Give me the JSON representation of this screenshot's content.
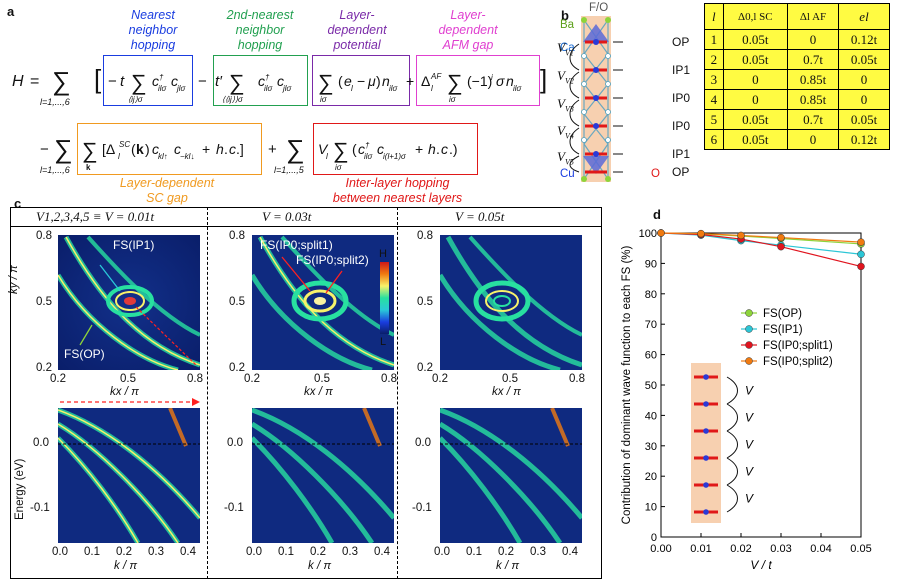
{
  "panel_a": {
    "letter": "a",
    "ann_nn": "Nearest\nneighbor\nhopping",
    "ann_2nn": "2nd-nearest\nneighbor\nhopping",
    "ann_pot": "Layer-\ndependent\npotential",
    "ann_afm": "Layer-\ndependent\nAFM gap",
    "ann_sc": "Layer-dependent\nSC gap",
    "ann_inter": "Inter-layer hopping\nbetween nearest layers",
    "colors": {
      "nn": "#1a3de0",
      "nnn": "#22a050",
      "pot": "#7a2aa8",
      "afm": "#e040d0",
      "sc": "#f09a20",
      "inter": "#e01818"
    }
  },
  "panel_b": {
    "letter": "b",
    "label_fo": "F/O",
    "label_ba": "Ba",
    "label_ca": "Ca",
    "label_cu": "Cu",
    "label_o": "O",
    "v_labels": [
      "V1",
      "V2",
      "V3",
      "V4",
      "V5"
    ],
    "layer_labels": [
      "OP",
      "IP1",
      "IP0",
      "IP0",
      "IP1",
      "OP"
    ],
    "table_headers": [
      "l",
      "Δ0,l SC",
      "Δl AF",
      "el"
    ],
    "rows": [
      {
        "l": "1",
        "sc": "0.05t",
        "af": "0",
        "e": "0.12t"
      },
      {
        "l": "2",
        "sc": "0.05t",
        "af": "0.7t",
        "e": "0.05t"
      },
      {
        "l": "3",
        "sc": "0",
        "af": "0.85t",
        "e": "0"
      },
      {
        "l": "4",
        "sc": "0",
        "af": "0.85t",
        "e": "0"
      },
      {
        "l": "5",
        "sc": "0.05t",
        "af": "0.7t",
        "e": "0.05t"
      },
      {
        "l": "6",
        "sc": "0.05t",
        "af": "0",
        "e": "0.12t"
      }
    ]
  },
  "panel_c": {
    "letter": "c",
    "col_titles": [
      "V1,2,3,4,5 ≡ V = 0.01t",
      "V = 0.03t",
      "V = 0.05t"
    ],
    "fs_labels": {
      "ip1": "FS(IP1)",
      "op": "FS(OP)",
      "split1": "FS(IP0;split1)",
      "split2": "FS(IP0;split2)"
    },
    "colorbar": {
      "high": "H",
      "low": "L"
    },
    "top_ylabel": "ky / π",
    "top_xlabel": "kx / π",
    "top_xticks": [
      "0.2",
      "0.5",
      "0.8"
    ],
    "top_yticks": [
      "0.8",
      "0.5",
      "0.2"
    ],
    "bot_ylabel": "Energy (eV)",
    "bot_xlabel": "k / π",
    "bot_xticks": [
      "0.0",
      "0.1",
      "0.2",
      "0.3",
      "0.4"
    ],
    "bot_yticks": [
      "0.0",
      "-0.1"
    ]
  },
  "chart_data": {
    "type": "line",
    "title": "d",
    "xlabel": "V / t",
    "ylabel": "Contribution of dominant wave function to each FS (%)",
    "x": [
      0.0,
      0.01,
      0.02,
      0.03,
      0.05
    ],
    "xlim": [
      0.0,
      0.05
    ],
    "ylim": [
      0,
      100
    ],
    "xticks": [
      "0.00",
      "0.01",
      "0.02",
      "0.03",
      "0.04",
      "0.05"
    ],
    "yticks": [
      "0",
      "10",
      "20",
      "30",
      "40",
      "50",
      "60",
      "70",
      "80",
      "90",
      "100"
    ],
    "series": [
      {
        "name": "FS(OP)",
        "color": "#8ed43a",
        "values": [
          100,
          99.7,
          99.0,
          98.2,
          96.4
        ]
      },
      {
        "name": "FS(IP1)",
        "color": "#2cc6d6",
        "values": [
          100,
          99.3,
          97.5,
          96.0,
          93.0
        ]
      },
      {
        "name": "FS(IP0;split1)",
        "color": "#e0141e",
        "values": [
          100,
          99.5,
          98.0,
          95.5,
          89.0
        ]
      },
      {
        "name": "FS(IP0;split2)",
        "color": "#f07a10",
        "values": [
          100,
          99.8,
          99.2,
          98.5,
          97.0
        ]
      }
    ],
    "inset_label": "V"
  }
}
